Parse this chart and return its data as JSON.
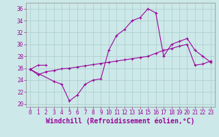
{
  "xlabel": "Windchill (Refroidissement éolien,°C)",
  "x": [
    0,
    1,
    2,
    3,
    4,
    5,
    6,
    7,
    8,
    9,
    10,
    11,
    12,
    13,
    14,
    15,
    16,
    17,
    18,
    19,
    20,
    21,
    22,
    23
  ],
  "line1_x": [
    0,
    1,
    2
  ],
  "line1_y": [
    25.8,
    26.5,
    26.5
  ],
  "line2_x": [
    0,
    3,
    4,
    5,
    6,
    7,
    8,
    9,
    10,
    11,
    12,
    13,
    14,
    15,
    16,
    17,
    18,
    19,
    20,
    21,
    22,
    23
  ],
  "line2_y": [
    25.8,
    23.8,
    23.3,
    20.5,
    21.5,
    23.3,
    24.0,
    24.2,
    29.0,
    31.5,
    32.5,
    34.0,
    34.5,
    36.0,
    35.3,
    28.0,
    30.0,
    30.5,
    31.0,
    29.0,
    28.0,
    27.0
  ],
  "line3_x": [
    0,
    1,
    2,
    3,
    4,
    5,
    6,
    7,
    8,
    9,
    10,
    11,
    12,
    13,
    14,
    15,
    16,
    17,
    18,
    19,
    20,
    21,
    22,
    23
  ],
  "line3_y": [
    25.8,
    24.9,
    25.4,
    25.6,
    25.9,
    26.0,
    26.2,
    26.4,
    26.6,
    26.8,
    27.0,
    27.2,
    27.4,
    27.6,
    27.8,
    28.0,
    28.5,
    29.0,
    29.3,
    29.7,
    30.0,
    26.5,
    26.7,
    27.2
  ],
  "line_color": "#990099",
  "bg_color": "#cce8e8",
  "grid_color": "#aacccc",
  "ylim": [
    19.5,
    37.0
  ],
  "xlim": [
    -0.5,
    23.5
  ],
  "yticks": [
    20,
    22,
    24,
    26,
    28,
    30,
    32,
    34,
    36
  ],
  "xticks": [
    0,
    1,
    2,
    3,
    4,
    5,
    6,
    7,
    8,
    9,
    10,
    11,
    12,
    13,
    14,
    15,
    16,
    17,
    18,
    19,
    20,
    21,
    22,
    23
  ],
  "tick_fontsize": 5.5,
  "xlabel_fontsize": 7.0
}
